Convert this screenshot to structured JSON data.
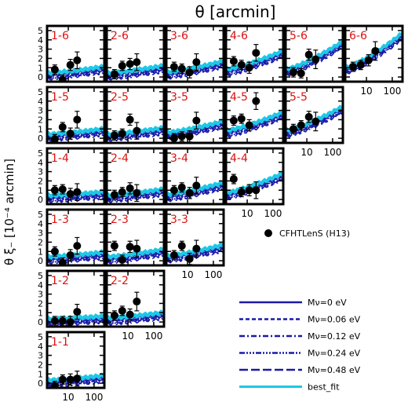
{
  "top_axis_label": "θ [arcmin]",
  "y_axis_label": "θ ξ₋ [10⁻⁴ arcmin]",
  "colors": {
    "panel_label": "#dd1111",
    "model_dark": "#1a1aa8",
    "best_fit": "#1ec8e6",
    "points": "#000000",
    "frame": "#000000"
  },
  "chart_data": {
    "type": "scatter",
    "description_grid": "6x6 lower-triangular grid of tomographic bin pairs (upper-left triangle layout)",
    "x_scale": "log",
    "xlim": [
      1.5,
      250
    ],
    "ylim": [
      -0.5,
      5.5
    ],
    "x_tick_labels": [
      "10",
      "100"
    ],
    "y_tick_labels": [
      "0",
      "1",
      "2",
      "3",
      "4",
      "5"
    ],
    "legend": {
      "data_label": "CFHTLenS (H13)",
      "lines": [
        {
          "label": "Mν=0 eV",
          "style": "solid",
          "color": "#1a1aa8"
        },
        {
          "label": "Mν=0.06 eV",
          "style": "dashed",
          "color": "#1a1aa8"
        },
        {
          "label": "Mν=0.12 eV",
          "style": "dashdot",
          "color": "#1a1aa8"
        },
        {
          "label": "Mν=0.24 eV",
          "style": "dashdotdotdot",
          "color": "#1a1aa8"
        },
        {
          "label": "Mν=0.48 eV",
          "style": "longdash",
          "color": "#1a1aa8"
        },
        {
          "label": "best_fit",
          "style": "solid",
          "color": "#1ec8e6"
        }
      ]
    },
    "panels": [
      {
        "label": "1-6",
        "col": 0,
        "row": 0,
        "points": [
          [
            3,
            0.8,
            0.5
          ],
          [
            6,
            -0.3,
            0.5
          ],
          [
            12,
            1.3,
            0.6
          ],
          [
            22,
            1.8,
            0.9
          ]
        ],
        "model": [
          0.2,
          0.9
        ]
      },
      {
        "label": "2-6",
        "col": 1,
        "row": 0,
        "points": [
          [
            3,
            0.3,
            0.5
          ],
          [
            6,
            1.2,
            0.5
          ],
          [
            12,
            1.4,
            0.6
          ],
          [
            22,
            1.6,
            0.9
          ]
        ],
        "model": [
          0.2,
          1.0
        ]
      },
      {
        "label": "3-6",
        "col": 2,
        "row": 0,
        "points": [
          [
            3,
            1.1,
            0.5
          ],
          [
            6,
            0.9,
            0.5
          ],
          [
            12,
            0.5,
            0.6
          ],
          [
            22,
            1.6,
            0.9
          ]
        ],
        "model": [
          0.3,
          1.5
        ]
      },
      {
        "label": "4-6",
        "col": 3,
        "row": 0,
        "points": [
          [
            3,
            1.7,
            0.5
          ],
          [
            6,
            1.3,
            0.5
          ],
          [
            12,
            1.0,
            0.6
          ],
          [
            22,
            2.6,
            0.9
          ]
        ],
        "model": [
          0.6,
          2.6
        ]
      },
      {
        "label": "5-6",
        "col": 4,
        "row": 0,
        "points": [
          [
            3,
            0.5,
            0.5
          ],
          [
            6,
            0.4,
            0.5
          ],
          [
            12,
            2.4,
            0.6
          ],
          [
            22,
            1.9,
            1.0
          ]
        ],
        "model": [
          0.6,
          3.6
        ]
      },
      {
        "label": "6-6",
        "col": 5,
        "row": 0,
        "points": [
          [
            3,
            1.1,
            0.5
          ],
          [
            6,
            1.3,
            0.5
          ],
          [
            12,
            1.8,
            0.6
          ],
          [
            22,
            2.8,
            1.0
          ]
        ],
        "model": [
          0.8,
          4.5
        ]
      },
      {
        "label": "1-5",
        "col": 0,
        "row": 1,
        "points": [
          [
            3,
            -0.1,
            0.5
          ],
          [
            6,
            1.2,
            0.5
          ],
          [
            12,
            0.5,
            0.6
          ],
          [
            22,
            2.0,
            0.9
          ]
        ],
        "model": [
          0.2,
          0.8
        ]
      },
      {
        "label": "2-5",
        "col": 1,
        "row": 1,
        "points": [
          [
            3,
            0.3,
            0.5
          ],
          [
            6,
            0.5,
            0.5
          ],
          [
            12,
            2.0,
            0.6
          ],
          [
            22,
            0.8,
            0.9
          ]
        ],
        "model": [
          0.2,
          0.9
        ]
      },
      {
        "label": "3-5",
        "col": 2,
        "row": 1,
        "points": [
          [
            3,
            0.0,
            0.5
          ],
          [
            6,
            0.2,
            0.5
          ],
          [
            12,
            0.2,
            0.6
          ],
          [
            22,
            1.9,
            0.9
          ]
        ],
        "model": [
          0.4,
          1.6
        ]
      },
      {
        "label": "4-5",
        "col": 3,
        "row": 1,
        "points": [
          [
            3,
            1.9,
            0.5
          ],
          [
            6,
            2.1,
            0.5
          ],
          [
            12,
            1.4,
            0.6
          ],
          [
            22,
            4.0,
            0.9
          ]
        ],
        "model": [
          0.6,
          2.6
        ]
      },
      {
        "label": "5-5",
        "col": 4,
        "row": 1,
        "points": [
          [
            3,
            1.0,
            0.5
          ],
          [
            6,
            1.4,
            0.5
          ],
          [
            12,
            2.3,
            0.6
          ],
          [
            22,
            1.8,
            1.0
          ]
        ],
        "model": [
          0.6,
          3.2
        ]
      },
      {
        "label": "1-4",
        "col": 0,
        "row": 2,
        "points": [
          [
            3,
            1.0,
            0.5
          ],
          [
            6,
            1.1,
            0.5
          ],
          [
            12,
            0.6,
            0.6
          ],
          [
            22,
            0.8,
            0.9
          ]
        ],
        "model": [
          0.2,
          0.6
        ]
      },
      {
        "label": "2-4",
        "col": 1,
        "row": 2,
        "points": [
          [
            3,
            0.5,
            0.5
          ],
          [
            6,
            0.8,
            0.5
          ],
          [
            12,
            1.2,
            0.6
          ],
          [
            22,
            0.7,
            0.9
          ]
        ],
        "model": [
          0.2,
          0.9
        ]
      },
      {
        "label": "3-4",
        "col": 2,
        "row": 2,
        "points": [
          [
            3,
            1.0,
            0.5
          ],
          [
            6,
            1.3,
            0.5
          ],
          [
            12,
            0.7,
            0.6
          ],
          [
            22,
            1.5,
            0.9
          ]
        ],
        "model": [
          0.3,
          1.6
        ]
      },
      {
        "label": "4-4",
        "col": 3,
        "row": 2,
        "points": [
          [
            3,
            2.2,
            0.5
          ],
          [
            6,
            0.8,
            0.5
          ],
          [
            12,
            1.0,
            0.6
          ],
          [
            22,
            1.0,
            0.9
          ]
        ],
        "model": [
          0.5,
          2.6
        ]
      },
      {
        "label": "1-3",
        "col": 0,
        "row": 3,
        "points": [
          [
            3,
            1.0,
            0.5
          ],
          [
            6,
            -0.2,
            0.5
          ],
          [
            12,
            0.6,
            0.6
          ],
          [
            22,
            1.6,
            0.9
          ]
        ],
        "model": [
          0.2,
          0.7
        ]
      },
      {
        "label": "2-3",
        "col": 1,
        "row": 3,
        "points": [
          [
            3,
            1.6,
            0.5
          ],
          [
            6,
            0.1,
            0.5
          ],
          [
            12,
            1.5,
            0.6
          ],
          [
            22,
            1.3,
            0.9
          ]
        ],
        "model": [
          0.2,
          1.0
        ]
      },
      {
        "label": "3-3",
        "col": 2,
        "row": 3,
        "points": [
          [
            3,
            0.6,
            0.5
          ],
          [
            6,
            1.6,
            0.5
          ],
          [
            12,
            0.2,
            0.6
          ],
          [
            22,
            1.3,
            0.9
          ]
        ],
        "model": [
          0.3,
          1.5
        ]
      },
      {
        "label": "1-2",
        "col": 0,
        "row": 4,
        "points": [
          [
            3,
            0.1,
            0.5
          ],
          [
            6,
            0.1,
            0.5
          ],
          [
            12,
            0.0,
            0.6
          ],
          [
            22,
            1.1,
            0.8
          ]
        ],
        "model": [
          0.1,
          0.4
        ]
      },
      {
        "label": "2-2",
        "col": 1,
        "row": 4,
        "points": [
          [
            3,
            0.7,
            0.5
          ],
          [
            6,
            1.2,
            0.5
          ],
          [
            12,
            0.8,
            0.6
          ],
          [
            22,
            2.2,
            1.0
          ]
        ],
        "model": [
          0.2,
          0.8
        ]
      },
      {
        "label": "1-1",
        "col": 0,
        "row": 5,
        "points": [
          [
            3,
            -0.3,
            0.5
          ],
          [
            6,
            0.4,
            0.5
          ],
          [
            12,
            0.4,
            0.6
          ],
          [
            22,
            0.5,
            0.8
          ]
        ],
        "model": [
          0.1,
          0.6
        ]
      }
    ]
  }
}
